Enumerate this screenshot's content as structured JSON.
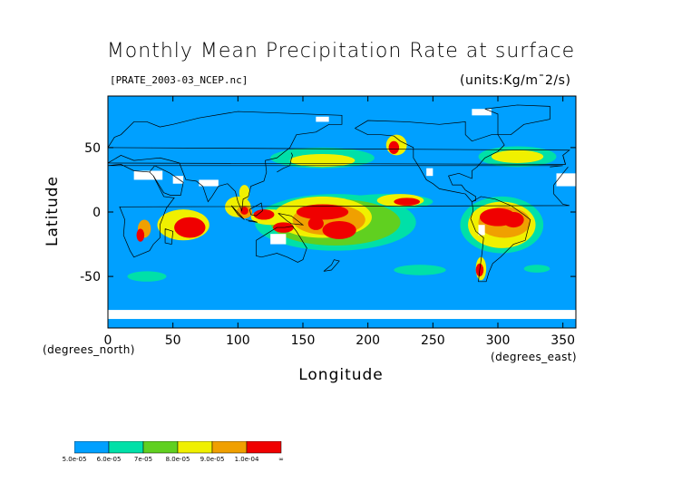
{
  "chart_data": {
    "type": "heatmap",
    "title": "Monthly Mean Precipitation Rate at surface",
    "source_label": "[PRATE_2003-03_NCEP.nc]",
    "units_label": "(units:Kg/m¯2/s)",
    "xlabel": "Longitude",
    "ylabel": "Latitude",
    "x_unit": "(degrees_east)",
    "y_unit": "(degrees_north)",
    "xlim": [
      0,
      360
    ],
    "ylim": [
      -90,
      90
    ],
    "x_ticks": [
      0,
      50,
      100,
      150,
      200,
      250,
      300,
      350
    ],
    "y_ticks": [
      -50,
      0,
      50
    ],
    "grid": false,
    "colorbar": {
      "placement": "bottom-left",
      "colors": [
        "#00a0ff",
        "#00e0a8",
        "#60d020",
        "#f0f000",
        "#f0a000",
        "#f00000"
      ],
      "labels": [
        "5.0e-05",
        "6.0e-05",
        "7e-05",
        "8.0e-05",
        "9.0e-05",
        "1.0e-04",
        "∞"
      ]
    },
    "regions": [
      {
        "level": 5,
        "lon": 63,
        "lat": -12,
        "rlon": 12,
        "rlat": 8
      },
      {
        "level": 3,
        "lon": 58,
        "lat": -10,
        "rlon": 20,
        "rlat": 12
      },
      {
        "level": 5,
        "lon": 25,
        "lat": -18,
        "rlon": 3,
        "rlat": 5
      },
      {
        "level": 4,
        "lon": 28,
        "lat": -13,
        "rlon": 5,
        "rlat": 7
      },
      {
        "level": 4,
        "lon": 105,
        "lat": 0,
        "rlon": 6,
        "rlat": 5
      },
      {
        "level": 5,
        "lon": 105,
        "lat": 1,
        "rlon": 3,
        "rlat": 3
      },
      {
        "level": 3,
        "lon": 100,
        "lat": 4,
        "rlon": 10,
        "rlat": 8
      },
      {
        "level": 5,
        "lon": 120,
        "lat": -2,
        "rlon": 8,
        "rlat": 4
      },
      {
        "level": 3,
        "lon": 125,
        "lat": -4,
        "rlon": 15,
        "rlat": 6
      },
      {
        "level": 5,
        "lon": 135,
        "lat": -12,
        "rlon": 8,
        "rlat": 4
      },
      {
        "level": 5,
        "lon": 165,
        "lat": 0,
        "rlon": 20,
        "rlat": 6
      },
      {
        "level": 5,
        "lon": 178,
        "lat": -14,
        "rlon": 13,
        "rlat": 7
      },
      {
        "level": 5,
        "lon": 160,
        "lat": -9,
        "rlon": 6,
        "rlat": 5
      },
      {
        "level": 4,
        "lon": 170,
        "lat": -6,
        "rlon": 28,
        "rlat": 12
      },
      {
        "level": 3,
        "lon": 165,
        "lat": -4,
        "rlon": 38,
        "rlat": 16
      },
      {
        "level": 2,
        "lon": 175,
        "lat": -8,
        "rlon": 50,
        "rlat": 18
      },
      {
        "level": 1,
        "lon": 175,
        "lat": -8,
        "rlon": 62,
        "rlat": 22
      },
      {
        "level": 5,
        "lon": 230,
        "lat": 8,
        "rlon": 10,
        "rlat": 3
      },
      {
        "level": 3,
        "lon": 225,
        "lat": 9,
        "rlon": 18,
        "rlat": 5
      },
      {
        "level": 1,
        "lon": 215,
        "lat": 8,
        "rlon": 35,
        "rlat": 6
      },
      {
        "level": 5,
        "lon": 300,
        "lat": -4,
        "rlon": 14,
        "rlat": 7
      },
      {
        "level": 5,
        "lon": 312,
        "lat": -6,
        "rlon": 8,
        "rlat": 6
      },
      {
        "level": 4,
        "lon": 305,
        "lat": -8,
        "rlon": 20,
        "rlat": 12
      },
      {
        "level": 3,
        "lon": 303,
        "lat": -10,
        "rlon": 26,
        "rlat": 18
      },
      {
        "level": 1,
        "lon": 303,
        "lat": -10,
        "rlon": 32,
        "rlat": 22
      },
      {
        "level": 5,
        "lon": 286,
        "lat": -45,
        "rlon": 3,
        "rlat": 5
      },
      {
        "level": 3,
        "lon": 287,
        "lat": -44,
        "rlon": 4,
        "rlat": 9
      },
      {
        "level": 5,
        "lon": 220,
        "lat": 50,
        "rlon": 4,
        "rlat": 5
      },
      {
        "level": 3,
        "lon": 222,
        "lat": 52,
        "rlon": 8,
        "rlat": 8
      },
      {
        "level": 3,
        "lon": 165,
        "lat": 40,
        "rlon": 25,
        "rlat": 5
      },
      {
        "level": 1,
        "lon": 165,
        "lat": 42,
        "rlon": 40,
        "rlat": 8
      },
      {
        "level": 3,
        "lon": 315,
        "lat": 43,
        "rlon": 20,
        "rlat": 5
      },
      {
        "level": 1,
        "lon": 315,
        "lat": 43,
        "rlon": 30,
        "rlat": 8
      },
      {
        "level": 3,
        "lon": 105,
        "lat": 15,
        "rlon": 4,
        "rlat": 6
      },
      {
        "level": 1,
        "lon": 30,
        "lat": -50,
        "rlon": 15,
        "rlat": 4
      },
      {
        "level": 1,
        "lon": 240,
        "lat": -45,
        "rlon": 20,
        "rlat": 4
      },
      {
        "level": 1,
        "lon": 330,
        "lat": -44,
        "rlon": 10,
        "rlat": 3
      }
    ],
    "no_data_regions": [
      {
        "lon": 20,
        "lat": 25,
        "rlon": 22,
        "rlat": 7
      },
      {
        "lon": 70,
        "lat": 20,
        "rlon": 15,
        "rlat": 5
      },
      {
        "lon": 50,
        "lat": 22,
        "rlon": 8,
        "rlat": 6
      },
      {
        "lon": 125,
        "lat": -25,
        "rlon": 12,
        "rlat": 8
      },
      {
        "lon": 0,
        "lat": -83,
        "rlon": 360,
        "rlat": 7
      },
      {
        "lon": 345,
        "lat": 20,
        "rlon": 15,
        "rlat": 10
      },
      {
        "lon": 245,
        "lat": 28,
        "rlon": 5,
        "rlat": 6
      },
      {
        "lon": 285,
        "lat": -18,
        "rlon": 5,
        "rlat": 8
      },
      {
        "lon": 160,
        "lat": 70,
        "rlon": 10,
        "rlat": 4
      },
      {
        "lon": 280,
        "lat": 75,
        "rlon": 15,
        "rlat": 5
      }
    ],
    "land_outlines": [
      [
        [
          -20,
          35
        ],
        [
          -10,
          36
        ],
        [
          0,
          36
        ],
        [
          10,
          37
        ],
        [
          20,
          32
        ],
        [
          32,
          31
        ],
        [
          35,
          28
        ],
        [
          43,
          12
        ],
        [
          51,
          11
        ],
        [
          45,
          3
        ],
        [
          40,
          -10
        ],
        [
          40,
          -20
        ],
        [
          35,
          -25
        ],
        [
          32,
          -30
        ],
        [
          20,
          -35
        ],
        [
          17,
          -30
        ],
        [
          12,
          -18
        ],
        [
          13,
          -6
        ],
        [
          9,
          4
        ],
        [
          -5,
          5
        ],
        [
          -10,
          6
        ],
        [
          -17,
          14
        ],
        [
          -17,
          21
        ],
        [
          -10,
          30
        ],
        [
          -6,
          35
        ]
      ],
      [
        [
          44,
          -13
        ],
        [
          50,
          -15
        ],
        [
          49,
          -25
        ],
        [
          44,
          -24
        ],
        [
          44,
          -13
        ]
      ],
      [
        [
          32,
          31
        ],
        [
          36,
          36
        ],
        [
          48,
          30
        ],
        [
          58,
          23
        ],
        [
          56,
          13
        ],
        [
          48,
          13
        ],
        [
          43,
          15
        ],
        [
          35,
          28
        ]
      ],
      [
        [
          60,
          25
        ],
        [
          68,
          24
        ],
        [
          73,
          20
        ],
        [
          77,
          8
        ],
        [
          80,
          12
        ],
        [
          85,
          20
        ],
        [
          92,
          22
        ],
        [
          98,
          16
        ],
        [
          100,
          8
        ],
        [
          103,
          1
        ],
        [
          104,
          10
        ],
        [
          108,
          12
        ],
        [
          110,
          20
        ],
        [
          120,
          24
        ],
        [
          122,
          31
        ],
        [
          121,
          40
        ],
        [
          130,
          42
        ],
        [
          140,
          50
        ],
        [
          145,
          60
        ],
        [
          160,
          62
        ],
        [
          170,
          68
        ],
        [
          180,
          68
        ],
        [
          180,
          75
        ],
        [
          100,
          78
        ],
        [
          70,
          73
        ],
        [
          50,
          68
        ],
        [
          40,
          66
        ],
        [
          30,
          70
        ],
        [
          20,
          70
        ],
        [
          10,
          60
        ],
        [
          5,
          58
        ],
        [
          0,
          50
        ],
        [
          -5,
          48
        ],
        [
          -10,
          44
        ],
        [
          -8,
          37
        ],
        [
          0,
          38
        ],
        [
          10,
          44
        ],
        [
          20,
          40
        ],
        [
          30,
          41
        ],
        [
          40,
          42
        ],
        [
          48,
          40
        ],
        [
          55,
          38
        ],
        [
          60,
          25
        ]
      ],
      [
        [
          114,
          -22
        ],
        [
          114,
          -34
        ],
        [
          118,
          -35
        ],
        [
          130,
          -32
        ],
        [
          138,
          -35
        ],
        [
          146,
          -39
        ],
        [
          150,
          -37
        ],
        [
          153,
          -28
        ],
        [
          145,
          -15
        ],
        [
          142,
          -11
        ],
        [
          136,
          -12
        ],
        [
          130,
          -12
        ],
        [
          122,
          -17
        ],
        [
          114,
          -22
        ]
      ],
      [
        [
          95,
          5
        ],
        [
          105,
          -6
        ],
        [
          100,
          -2
        ],
        [
          95,
          5
        ]
      ],
      [
        [
          108,
          -7
        ],
        [
          115,
          -8
        ],
        [
          112,
          -7
        ],
        [
          106,
          -6
        ]
      ],
      [
        [
          109,
          2
        ],
        [
          118,
          7
        ],
        [
          119,
          1
        ],
        [
          114,
          -3
        ],
        [
          110,
          -2
        ],
        [
          109,
          2
        ]
      ],
      [
        [
          131,
          -1
        ],
        [
          141,
          -3
        ],
        [
          150,
          -10
        ],
        [
          141,
          -9
        ],
        [
          138,
          -7
        ],
        [
          131,
          -1
        ]
      ],
      [
        [
          166,
          -46
        ],
        [
          172,
          -41
        ],
        [
          174,
          -37
        ],
        [
          178,
          -38
        ],
        [
          172,
          -45
        ],
        [
          166,
          -46
        ]
      ],
      [
        [
          130,
          31
        ],
        [
          135,
          34
        ],
        [
          140,
          36
        ],
        [
          141,
          41
        ],
        [
          142,
          44
        ],
        [
          141,
          46
        ]
      ],
      [
        [
          190,
          65
        ],
        [
          200,
          60
        ],
        [
          210,
          60
        ],
        [
          220,
          59
        ],
        [
          225,
          55
        ],
        [
          235,
          50
        ],
        [
          235,
          42
        ],
        [
          240,
          34
        ],
        [
          245,
          25
        ],
        [
          250,
          22
        ],
        [
          255,
          18
        ],
        [
          265,
          16
        ],
        [
          275,
          14
        ],
        [
          280,
          8
        ],
        [
          283,
          9
        ],
        [
          283,
          12
        ],
        [
          275,
          17
        ],
        [
          272,
          21
        ],
        [
          265,
          21
        ],
        [
          262,
          28
        ],
        [
          270,
          30
        ],
        [
          280,
          26
        ],
        [
          280,
          32
        ],
        [
          284,
          35
        ],
        [
          290,
          42
        ],
        [
          300,
          47
        ],
        [
          305,
          52
        ],
        [
          300,
          60
        ],
        [
          295,
          60
        ],
        [
          280,
          55
        ],
        [
          275,
          60
        ],
        [
          275,
          70
        ],
        [
          255,
          68
        ],
        [
          230,
          70
        ],
        [
          200,
          71
        ],
        [
          190,
          65
        ]
      ],
      [
        [
          280,
          8
        ],
        [
          287,
          12
        ],
        [
          298,
          10
        ],
        [
          310,
          5
        ],
        [
          320,
          -2
        ],
        [
          325,
          -6
        ],
        [
          321,
          -22
        ],
        [
          312,
          -25
        ],
        [
          302,
          -35
        ],
        [
          296,
          -40
        ],
        [
          293,
          -47
        ],
        [
          291,
          -54
        ],
        [
          285,
          -54
        ],
        [
          286,
          -45
        ],
        [
          288,
          -30
        ],
        [
          289,
          -20
        ],
        [
          283,
          -15
        ],
        [
          279,
          -5
        ],
        [
          281,
          1
        ],
        [
          280,
          8
        ]
      ],
      [
        [
          300,
          60
        ],
        [
          310,
          60
        ],
        [
          320,
          68
        ],
        [
          340,
          72
        ],
        [
          340,
          82
        ],
        [
          315,
          83
        ],
        [
          290,
          80
        ],
        [
          300,
          76
        ],
        [
          300,
          60
        ]
      ],
      [
        [
          -10,
          44
        ],
        [
          -8,
          37
        ]
      ]
    ]
  }
}
